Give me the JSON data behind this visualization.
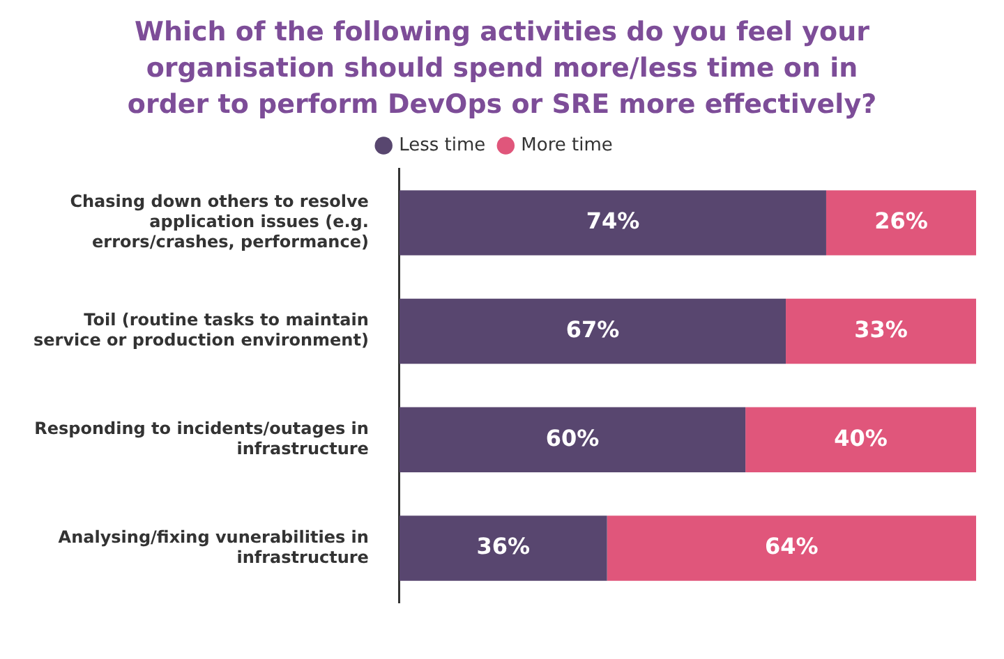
{
  "chart_data": {
    "type": "bar",
    "orientation": "horizontal",
    "stacked": true,
    "title": "Which of the following activities do you feel your organisation should spend more/less time on in order to perform DevOps or SRE more effectively?",
    "categories": [
      "Chasing down others to resolve application issues (e.g. errors/crashes, performance)",
      "Toil (routine tasks to maintain service or production environment)",
      "Responding to incidents/outages in infrastructure",
      "Analysing/fixing vunerabilities in infrastructure"
    ],
    "series": [
      {
        "name": "Less time",
        "color": "#58466f",
        "values": [
          74,
          67,
          60,
          36
        ],
        "value_labels": [
          "74%",
          "67%",
          "60%",
          "36%"
        ]
      },
      {
        "name": "More time",
        "color": "#e0567b",
        "values": [
          26,
          33,
          40,
          64
        ],
        "value_labels": [
          "26%",
          "33%",
          "40%",
          "64%"
        ]
      }
    ],
    "xlim": [
      0,
      100
    ],
    "tick_labels": "y",
    "legend": "top"
  }
}
